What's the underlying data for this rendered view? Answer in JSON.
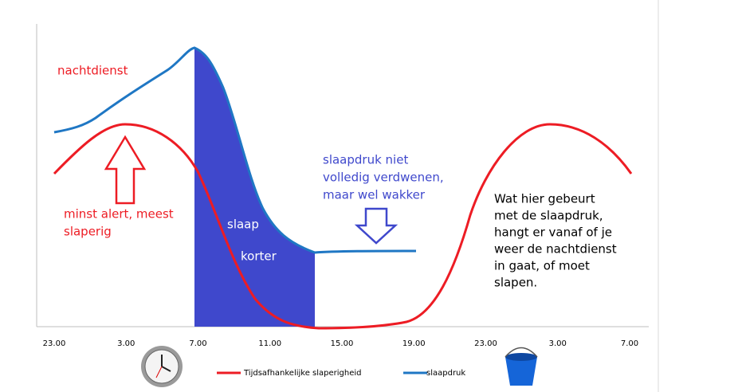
{
  "annotations": {
    "night_shift": "nachtdienst",
    "least_alert": [
      "minst alert, meest",
      "slaperig"
    ],
    "sleep": "slaap",
    "shorter": "korter",
    "pressure_note": [
      "slaapdruk niet",
      "volledig verdwenen,",
      "maar wel wakker"
    ],
    "what_happens": [
      "Wat hier gebeurt",
      "met de slaapdruk,",
      "hangt er vanaf of je",
      "weer de nachtdienst",
      "in gaat, of moet",
      "slapen."
    ]
  },
  "x_labels": [
    "23.00",
    "3.00",
    "7.00",
    "11.00",
    "15.00",
    "19.00",
    "23.00",
    "3.00",
    "7.00"
  ],
  "legend": [
    {
      "name": "Tijdsafhankelijke slaperigheid",
      "color": "#ed1c24"
    },
    {
      "name": "slaapdruk",
      "color": "#1f77c4"
    }
  ]
}
